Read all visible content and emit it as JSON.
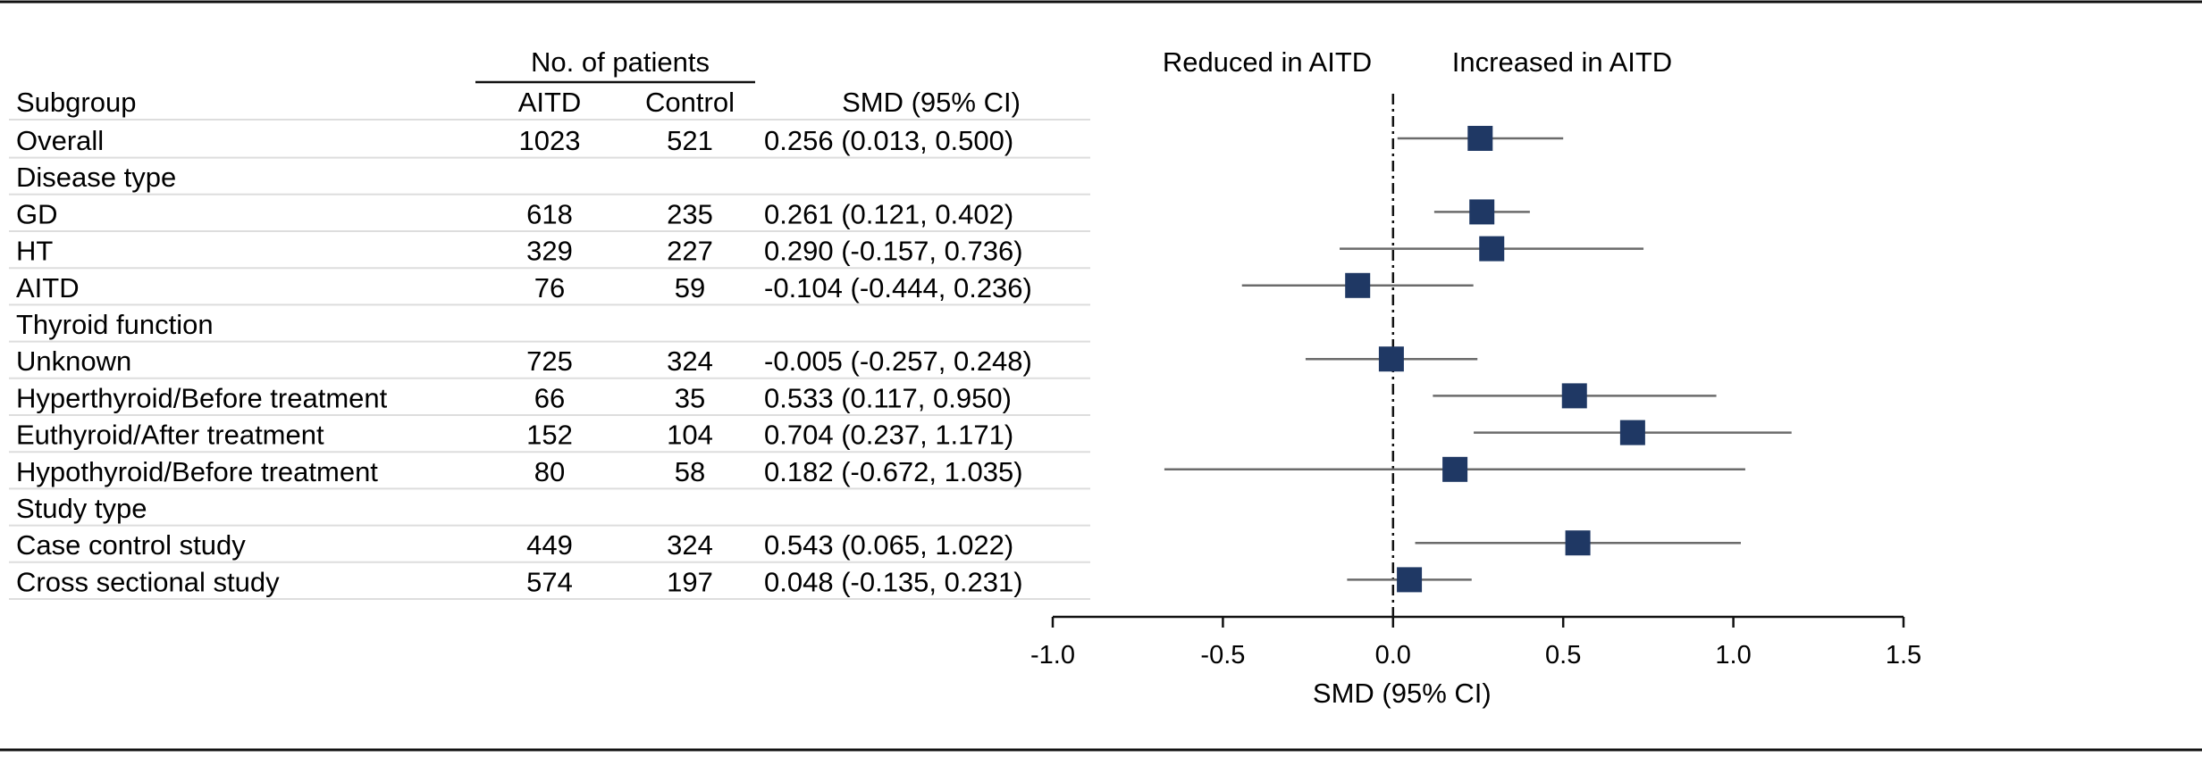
{
  "table": {
    "group_header": "No. of patients",
    "columns": [
      "Subgroup",
      "AITD",
      "Control",
      "SMD (95% CI)"
    ]
  },
  "chart_data": {
    "type": "forest",
    "xlabel": "SMD (95% CI)",
    "xlim": [
      -1.0,
      1.5
    ],
    "xticks": [
      -1.0,
      -0.5,
      0.0,
      0.5,
      1.0,
      1.5
    ],
    "xtick_labels": [
      "-1.0",
      "-0.5",
      "0.0",
      "0.5",
      "1.0",
      "1.5"
    ],
    "reference_line": 0.0,
    "left_label": "Reduced in AITD",
    "right_label": "Increased in AITD",
    "marker_color": "#1f3864",
    "ci_color": "#6b6b6b",
    "rows": [
      {
        "label": "Overall",
        "aitd": "1023",
        "control": "521",
        "smd_text": "0.256 (0.013, 0.500)",
        "est": 0.256,
        "lo": 0.013,
        "hi": 0.5
      },
      {
        "label": "Disease type",
        "header": true
      },
      {
        "label": "GD",
        "aitd": "618",
        "control": "235",
        "smd_text": "0.261 (0.121, 0.402)",
        "est": 0.261,
        "lo": 0.121,
        "hi": 0.402
      },
      {
        "label": "HT",
        "aitd": "329",
        "control": "227",
        "smd_text": "0.290 (-0.157, 0.736)",
        "est": 0.29,
        "lo": -0.157,
        "hi": 0.736
      },
      {
        "label": "AITD",
        "aitd": "76",
        "control": "59",
        "smd_text": "-0.104 (-0.444, 0.236)",
        "est": -0.104,
        "lo": -0.444,
        "hi": 0.236
      },
      {
        "label": "Thyroid function",
        "header": true
      },
      {
        "label": "Unknown",
        "aitd": "725",
        "control": "324",
        "smd_text": "-0.005 (-0.257, 0.248)",
        "est": -0.005,
        "lo": -0.257,
        "hi": 0.248
      },
      {
        "label": "Hyperthyroid/Before treatment",
        "aitd": "66",
        "control": "35",
        "smd_text": "0.533 (0.117, 0.950)",
        "est": 0.533,
        "lo": 0.117,
        "hi": 0.95
      },
      {
        "label": "Euthyroid/After treatment",
        "aitd": "152",
        "control": "104",
        "smd_text": "0.704 (0.237, 1.171)",
        "est": 0.704,
        "lo": 0.237,
        "hi": 1.171
      },
      {
        "label": "Hypothyroid/Before treatment",
        "aitd": "80",
        "control": "58",
        "smd_text": "0.182 (-0.672, 1.035)",
        "est": 0.182,
        "lo": -0.672,
        "hi": 1.035
      },
      {
        "label": "Study type",
        "header": true
      },
      {
        "label": "Case control study",
        "aitd": "449",
        "control": "324",
        "smd_text": "0.543 (0.065, 1.022)",
        "est": 0.543,
        "lo": 0.065,
        "hi": 1.022
      },
      {
        "label": "Cross sectional study",
        "aitd": "574",
        "control": "197",
        "smd_text": "0.048 (-0.135, 0.231)",
        "est": 0.048,
        "lo": -0.135,
        "hi": 0.231
      }
    ]
  }
}
